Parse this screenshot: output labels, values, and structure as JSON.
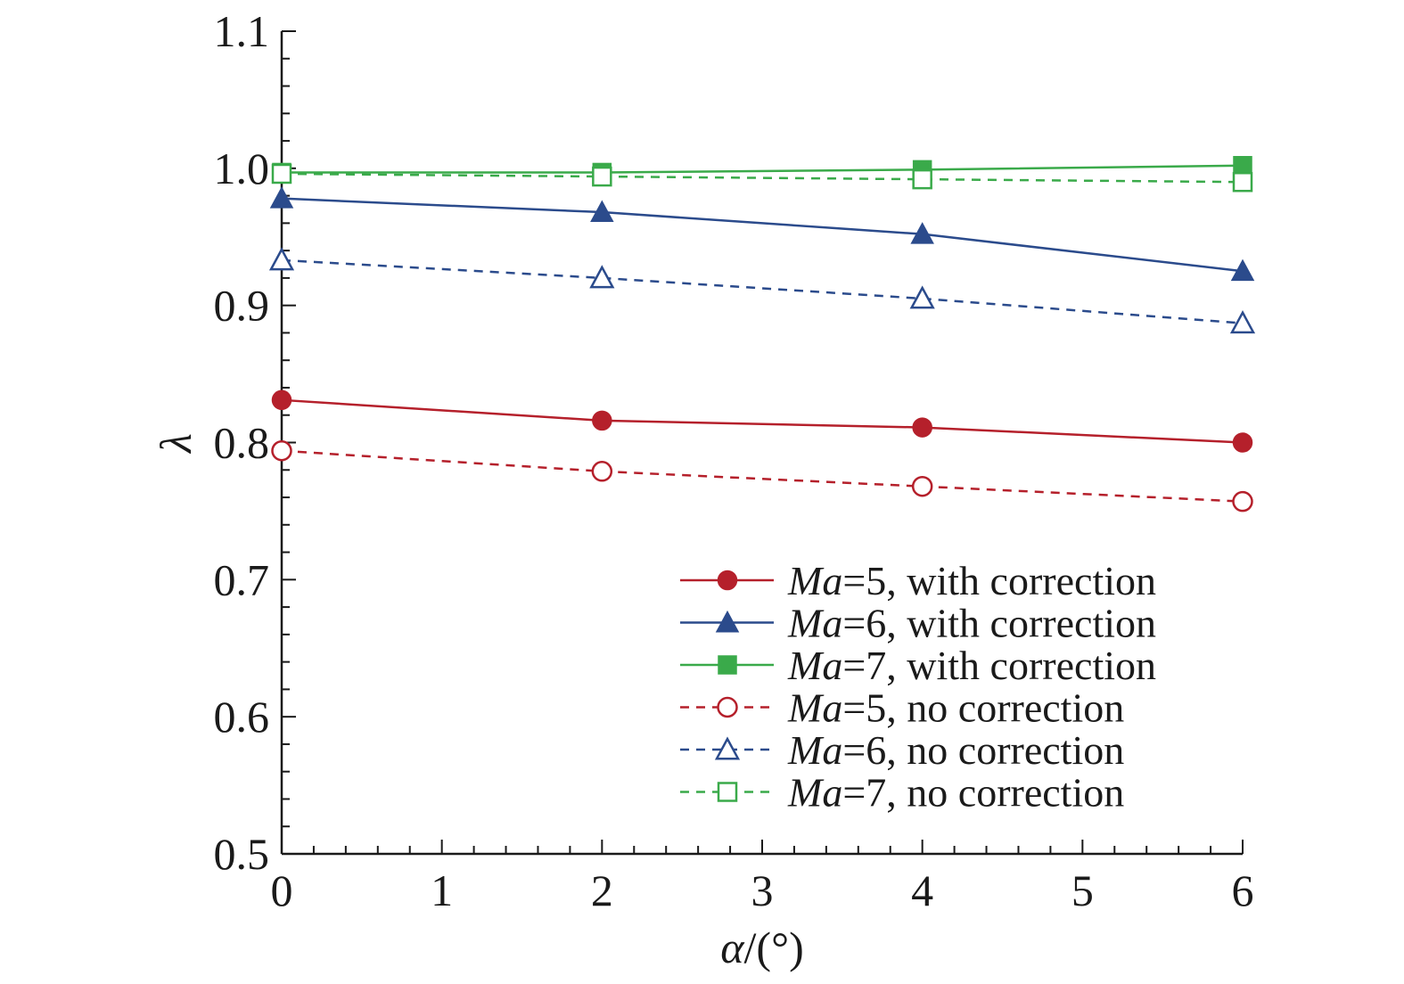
{
  "chart_data": {
    "type": "line",
    "x": [
      0,
      2,
      4,
      6
    ],
    "xlim": [
      0,
      6
    ],
    "ylim": [
      0.5,
      1.1
    ],
    "xticks": [
      "0",
      "1",
      "2",
      "3",
      "4",
      "5",
      "6"
    ],
    "yticks": [
      "0.5",
      "0.6",
      "0.7",
      "0.8",
      "0.9",
      "1.0",
      "1.1"
    ],
    "xlabel": {
      "symbol": "α",
      "rest": "/(°)"
    },
    "ylabel": "λ",
    "legend_position": "lower-right",
    "series": [
      {
        "name": "Ma=5, with correction",
        "var": "Ma",
        "rest": "=5, with correction",
        "color": "#b5202b",
        "marker": "circle",
        "filled": true,
        "dashed": false,
        "values": [
          0.831,
          0.816,
          0.811,
          0.8
        ]
      },
      {
        "name": "Ma=6, with correction",
        "var": "Ma",
        "rest": "=6, with correction",
        "color": "#2b4b8c",
        "marker": "triangle",
        "filled": true,
        "dashed": false,
        "values": [
          0.978,
          0.968,
          0.952,
          0.925
        ]
      },
      {
        "name": "Ma=7, with correction",
        "var": "Ma",
        "rest": "=7, with correction",
        "color": "#3aaa4a",
        "marker": "square",
        "filled": true,
        "dashed": false,
        "values": [
          0.997,
          0.997,
          0.999,
          1.002
        ]
      },
      {
        "name": "Ma=5, no correction",
        "var": "Ma",
        "rest": "=5, no correction",
        "color": "#b5202b",
        "marker": "circle",
        "filled": false,
        "dashed": true,
        "values": [
          0.794,
          0.779,
          0.768,
          0.757
        ]
      },
      {
        "name": "Ma=6, no correction",
        "var": "Ma",
        "rest": "=6, no correction",
        "color": "#2b4b8c",
        "marker": "triangle",
        "filled": false,
        "dashed": true,
        "values": [
          0.933,
          0.92,
          0.905,
          0.887
        ]
      },
      {
        "name": "Ma=7, no correction",
        "var": "Ma",
        "rest": "=7, no correction",
        "color": "#3aaa4a",
        "marker": "square",
        "filled": false,
        "dashed": true,
        "values": [
          0.996,
          0.994,
          0.992,
          0.99
        ]
      }
    ]
  }
}
